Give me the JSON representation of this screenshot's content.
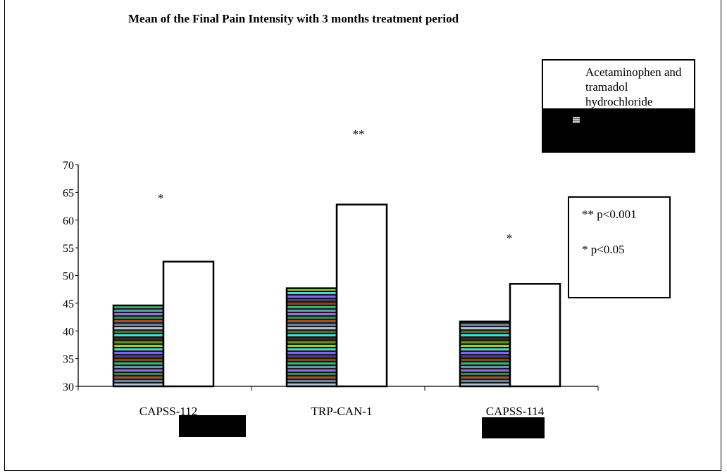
{
  "chart_data": {
    "type": "bar",
    "title": "Mean of the Final Pain Intensity with 3 months treatment period",
    "xlabel": "",
    "ylabel": "",
    "categories": [
      "CAPSS-112",
      "TRP-CAN-1",
      "CAPSS-114"
    ],
    "series": [
      {
        "values": [
          44.6,
          47.7,
          41.7
        ],
        "fill": "multicolor-striped"
      },
      {
        "name": "Acetaminophen and tramadol hydrochloride",
        "values": [
          52.5,
          62.8,
          48.5
        ],
        "fill": "#ffffff"
      }
    ],
    "ylim": [
      30,
      70
    ],
    "yticks": [
      "30",
      "35",
      "40",
      "45",
      "50",
      "55",
      "60",
      "65",
      "70"
    ],
    "annotations": [
      "*",
      "**",
      "*"
    ],
    "grid": false,
    "legend_position": "top-right"
  },
  "significance_legend": {
    "line1": "** p<0.001",
    "line2": "*  p<0.05"
  },
  "colors": {
    "stripes": [
      "#2a2a2a",
      "#6b8e23",
      "#9acd32",
      "#4fd3c4",
      "#7b68ee",
      "#483d8b",
      "#8b4513",
      "#3cb371",
      "#5f9ea0",
      "#9370db",
      "#2e8b57",
      "#a0522d",
      "#708090",
      "#b0c4de",
      "#556b2f",
      "#40e0d0"
    ]
  }
}
